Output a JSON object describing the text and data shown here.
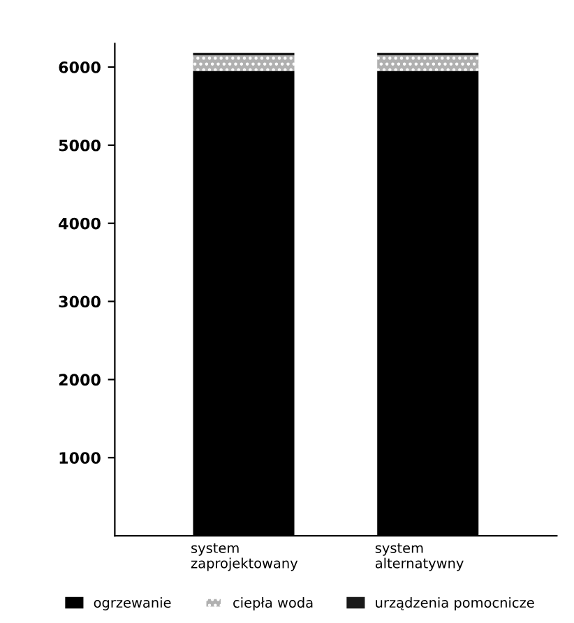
{
  "chart_data": {
    "type": "bar",
    "stacked": true,
    "categories": [
      "system\nzaprojektowany",
      "system\nalternatywny"
    ],
    "series": [
      {
        "name": "ogrzewanie",
        "color": "#000000",
        "values": [
          5950,
          5950
        ]
      },
      {
        "name": "ciepła woda",
        "color": "#b0b0b0",
        "values": [
          200,
          200
        ]
      },
      {
        "name": "urządzenia pomocnicze",
        "color": "#1a1a1a",
        "values": [
          30,
          30
        ]
      }
    ],
    "ylim": [
      0,
      6300
    ],
    "yticks": [
      1000,
      2000,
      3000,
      4000,
      5000,
      6000
    ],
    "grid": false,
    "legend": "bottom"
  }
}
